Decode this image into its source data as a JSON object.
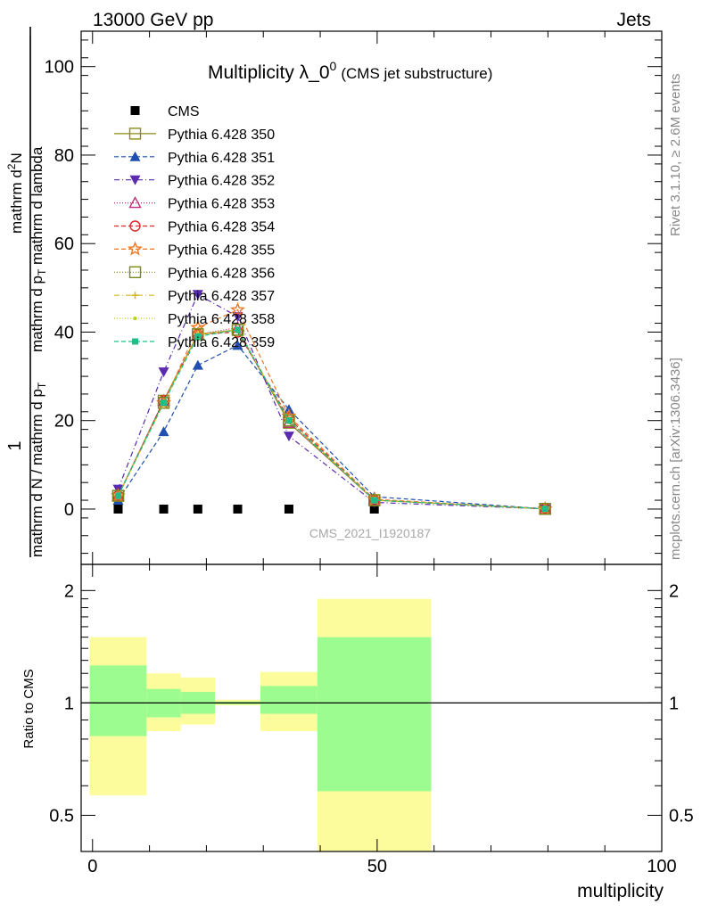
{
  "header": {
    "left": "13000 GeV pp",
    "right": "Jets"
  },
  "side_labels": {
    "rivet": "Rivet 3.1.10, ≥ 2.6M events",
    "mcplots": "mcplots.cern.ch [arXiv:1306.3436]"
  },
  "watermark": "CMS_2021_I1920187",
  "chart_data": [
    {
      "type": "line",
      "title_main": "Multiplicity λ_0",
      "title_sup": "0",
      "title_sub": "(CMS jet substructure)",
      "ylabel": {
        "numerator": "1",
        "denominator": "mathrm d N / mathrm d p",
        "denominator_sub": "T",
        "frac2_num": "mathrm d",
        "frac2_num_sup": "2",
        "frac2_num_end": "N",
        "frac2_den": "mathrm d p",
        "frac2_den_sub": "T",
        "frac2_den_end": " mathrm d lambda"
      },
      "xlim": [
        -2,
        100
      ],
      "ylim": [
        -12.5,
        108
      ],
      "y_ticks": [
        0,
        20,
        40,
        60,
        80,
        100
      ],
      "y_tick_labels": [
        "0",
        "20",
        "40",
        "60",
        "80",
        "100"
      ],
      "legend_position": "top-left",
      "series": [
        {
          "name": "CMS",
          "color": "#000000",
          "marker": "square-filled",
          "dash": "none",
          "x": [
            4.5,
            12.5,
            18.5,
            25.5,
            34.5,
            49.5
          ],
          "y": [
            0,
            0,
            0,
            0,
            0,
            0
          ]
        },
        {
          "name": "Pythia 6.428 350",
          "color": "#8c8c1e",
          "marker": "square-open",
          "dash": "solid",
          "x": [
            4.5,
            12.5,
            18.5,
            25.5,
            34.5,
            49.5,
            79.5
          ],
          "y": [
            3.0,
            24.5,
            39.5,
            40.5,
            19.5,
            2.0,
            0.05
          ]
        },
        {
          "name": "Pythia 6.428 351",
          "color": "#1f4fb0",
          "marker": "triangle-up-filled",
          "dash": "5,3",
          "x": [
            4.5,
            12.5,
            18.5,
            25.5,
            34.5,
            49.5,
            79.5
          ],
          "y": [
            2.0,
            17.5,
            32.5,
            37.0,
            22.5,
            2.8,
            0.05
          ]
        },
        {
          "name": "Pythia 6.428 352",
          "color": "#5b2cb0",
          "marker": "triangle-down-filled",
          "dash": "6,3,1,3",
          "x": [
            4.5,
            12.5,
            18.5,
            25.5,
            34.5,
            49.5,
            79.5
          ],
          "y": [
            4.5,
            31.0,
            48.5,
            43.5,
            16.5,
            1.5,
            0.05
          ]
        },
        {
          "name": "Pythia 6.428 353",
          "color": "#c0307a",
          "marker": "triangle-up-open",
          "dash": "1,2",
          "x": [
            4.5,
            12.5,
            18.5,
            25.5,
            34.5,
            49.5,
            79.5
          ],
          "y": [
            3.0,
            24.5,
            39.5,
            41.0,
            19.5,
            2.0,
            0.05
          ]
        },
        {
          "name": "Pythia 6.428 354",
          "color": "#d42a2a",
          "marker": "circle-open",
          "dash": "5,3",
          "x": [
            4.5,
            12.5,
            18.5,
            25.5,
            34.5,
            49.5,
            79.5
          ],
          "y": [
            3.0,
            24.5,
            39.5,
            40.0,
            20.5,
            2.0,
            0.05
          ]
        },
        {
          "name": "Pythia 6.428 355",
          "color": "#ee7722",
          "marker": "star-open",
          "dash": "5,3",
          "x": [
            4.5,
            12.5,
            18.5,
            25.5,
            34.5,
            49.5,
            79.5
          ],
          "y": [
            3.0,
            24.0,
            41.0,
            45.0,
            21.0,
            2.2,
            0.05
          ]
        },
        {
          "name": "Pythia 6.428 356",
          "color": "#7a8a1a",
          "marker": "square-open",
          "dash": "1,2",
          "x": [
            4.5,
            12.5,
            18.5,
            25.5,
            34.5,
            49.5,
            79.5
          ],
          "y": [
            3.0,
            24.0,
            39.5,
            40.5,
            20.0,
            2.0,
            0.05
          ]
        },
        {
          "name": "Pythia 6.428 357",
          "color": "#d4b820",
          "marker": "cross-small",
          "dash": "6,3,1,3",
          "x": [
            4.5,
            12.5,
            18.5,
            25.5,
            34.5,
            49.5,
            79.5
          ],
          "y": [
            3.0,
            24.0,
            39.5,
            40.5,
            20.0,
            2.0,
            0.05
          ]
        },
        {
          "name": "Pythia 6.428 358",
          "color": "#b8d020",
          "marker": "dot",
          "dash": "1,2",
          "x": [
            4.5,
            12.5,
            18.5,
            25.5,
            34.5,
            49.5,
            79.5
          ],
          "y": [
            3.0,
            24.0,
            39.5,
            40.5,
            20.0,
            2.0,
            0.05
          ]
        },
        {
          "name": "Pythia 6.428 359",
          "color": "#1fbf8a",
          "marker": "square-filled-small",
          "dash": "5,3",
          "x": [
            4.5,
            12.5,
            18.5,
            25.5,
            34.5,
            49.5,
            79.5
          ],
          "y": [
            3.0,
            24.0,
            39.0,
            40.5,
            20.0,
            2.0,
            0.05
          ]
        }
      ]
    },
    {
      "type": "area",
      "ylabel": "Ratio to CMS",
      "xlabel": "multiplicity",
      "xlim": [
        -2,
        100
      ],
      "y_scale": "log",
      "ylim": [
        0.4,
        2.35
      ],
      "y_tick_labels": [
        "0.5",
        "1",
        "2"
      ],
      "y_ticks": [
        0.5,
        1,
        2
      ],
      "x_ticks": [
        0,
        50,
        100
      ],
      "x_tick_labels": [
        "0",
        "50",
        "100"
      ],
      "reference_line": 1,
      "bands": [
        {
          "x0": -0.5,
          "x1": 9.5,
          "yellow": [
            0.565,
            1.5
          ],
          "green": [
            0.815,
            1.26
          ]
        },
        {
          "x0": 9.5,
          "x1": 15.5,
          "yellow": [
            0.84,
            1.2
          ],
          "green": [
            0.915,
            1.09
          ]
        },
        {
          "x0": 15.5,
          "x1": 21.5,
          "yellow": [
            0.875,
            1.17
          ],
          "green": [
            0.935,
            1.07
          ]
        },
        {
          "x0": 21.5,
          "x1": 29.5,
          "yellow": [
            0.985,
            1.02
          ],
          "green": [
            0.992,
            1.008
          ]
        },
        {
          "x0": 29.5,
          "x1": 39.5,
          "yellow": [
            0.84,
            1.21
          ],
          "green": [
            0.935,
            1.11
          ]
        },
        {
          "x0": 39.5,
          "x1": 59.5,
          "yellow": [
            0.38,
            1.9
          ],
          "green": [
            0.58,
            1.5
          ]
        }
      ]
    }
  ],
  "colors": {
    "green_band": "#9dfc90",
    "yellow_band": "#fcfc9c"
  }
}
